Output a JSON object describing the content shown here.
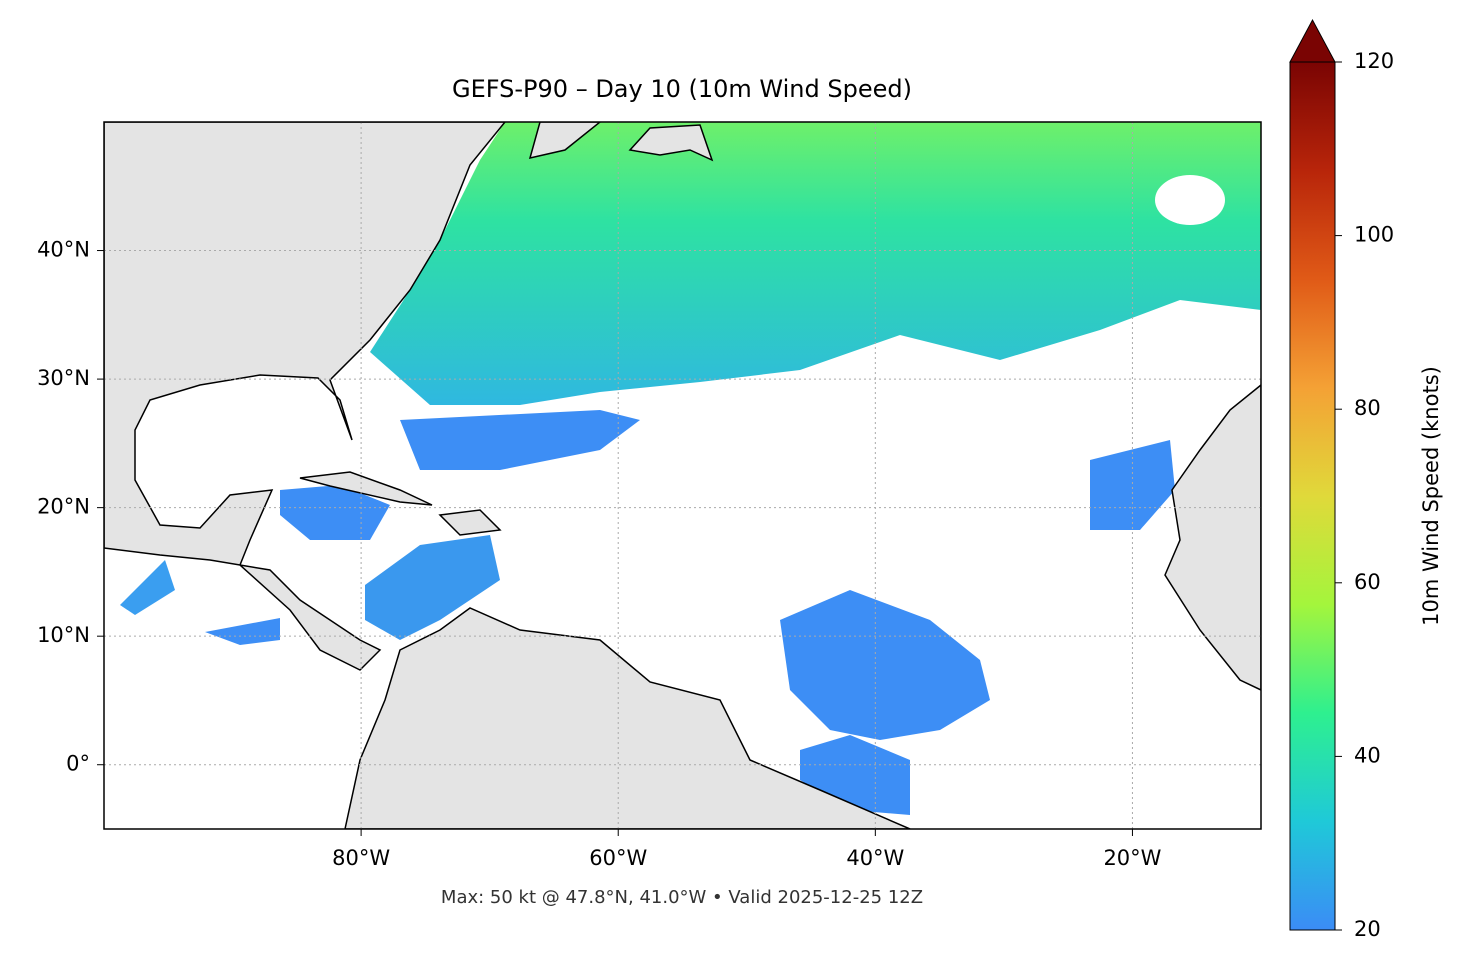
{
  "chart_data": {
    "type": "map",
    "title": "GEFS-P90 – Day 10 (10m Wind Speed)",
    "xlim": [
      -100,
      -10
    ],
    "ylim": [
      -5,
      50
    ],
    "xticks": [
      {
        "value": -80,
        "label": "80°W"
      },
      {
        "value": -60,
        "label": "60°W"
      },
      {
        "value": -40,
        "label": "40°W"
      },
      {
        "value": -20,
        "label": "20°W"
      }
    ],
    "yticks": [
      {
        "value": 0,
        "label": "0°"
      },
      {
        "value": 10,
        "label": "10°N"
      },
      {
        "value": 20,
        "label": "20°N"
      },
      {
        "value": 30,
        "label": "30°N"
      },
      {
        "value": 40,
        "label": "40°N"
      }
    ],
    "grid": true,
    "colorbar": {
      "label": "10m Wind Speed (knots)",
      "lim": [
        20,
        120
      ],
      "ticks": [
        20,
        40,
        60,
        80,
        100,
        120
      ],
      "colors": [
        "#3b8cf6",
        "#1fc9d8",
        "#2ef08f",
        "#a4f53c",
        "#e0d93a",
        "#f4a135",
        "#e05a17",
        "#b8250a",
        "#7a0403"
      ]
    },
    "note": "Max: 50 kt @ 47.8°N, 41.0°W • Valid 2025-12-25 12Z"
  }
}
